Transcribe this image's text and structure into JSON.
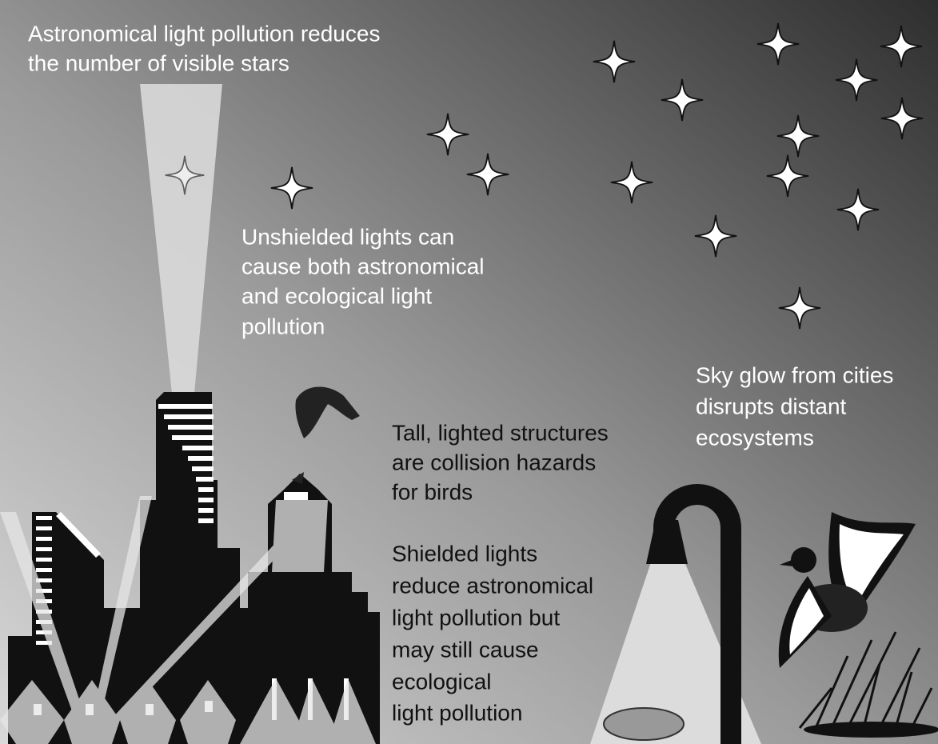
{
  "captions": [
    {
      "lines": [
        "Astronomical light pollution reduces",
        "the number of visible stars"
      ]
    },
    {
      "lines": [
        "Unshielded lights can",
        "cause both astronomical",
        "and ecological light",
        "pollution"
      ]
    },
    {
      "lines": [
        "Tall, lighted structures",
        "are collision hazards",
        "for birds"
      ]
    },
    {
      "lines": [
        "Shielded lights",
        "reduce astronomical",
        "light pollution but",
        "may still cause",
        "ecological",
        "light pollution"
      ]
    },
    {
      "lines": [
        "Sky glow from cities",
        "disrupts distant",
        "ecosystems"
      ]
    }
  ]
}
